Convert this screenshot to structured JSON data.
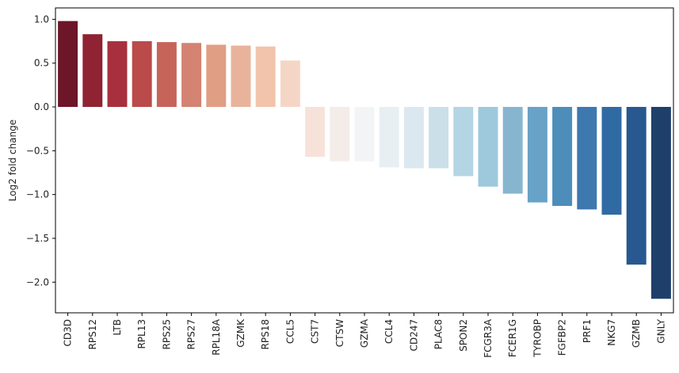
{
  "chart_data": {
    "type": "bar",
    "title": "",
    "xlabel": "",
    "ylabel": "Log2 fold change",
    "ylim": [
      -2.35,
      1.13
    ],
    "yticks": [
      1.0,
      0.5,
      0.0,
      -0.5,
      -1.0,
      -1.5,
      -2.0
    ],
    "ytick_labels": [
      "1.0",
      "0.5",
      "0.0",
      "−0.5",
      "−1.0",
      "−1.5",
      "−2.0"
    ],
    "categories": [
      "CD3D",
      "RPS12",
      "LTB",
      "RPL13",
      "RPS25",
      "RPS27",
      "RPL18A",
      "GZMK",
      "RPS18",
      "CCL5",
      "CST7",
      "CTSW",
      "GZMA",
      "CCL4",
      "CD247",
      "PLAC8",
      "SPON2",
      "FCGR3A",
      "FCER1G",
      "TYROBP",
      "FGFBP2",
      "PRF1",
      "NKG7",
      "GZMB",
      "GNLY"
    ],
    "values": [
      0.98,
      0.83,
      0.75,
      0.75,
      0.74,
      0.73,
      0.71,
      0.7,
      0.69,
      0.53,
      -0.57,
      -0.62,
      -0.62,
      -0.69,
      -0.7,
      -0.7,
      -0.79,
      -0.91,
      -0.99,
      -1.09,
      -1.13,
      -1.17,
      -1.23,
      -1.8,
      -2.19
    ],
    "colors": [
      "#6d1529",
      "#8f2233",
      "#a8303e",
      "#bb4a4a",
      "#c6645a",
      "#d48271",
      "#e09e84",
      "#e9b39b",
      "#f1c4ab",
      "#f5d6c6",
      "#f7e2da",
      "#f4ece9",
      "#f2f4f5",
      "#e8eff3",
      "#dce8ef",
      "#cadfe8",
      "#b4d5e3",
      "#9ec9dc",
      "#87b5cf",
      "#68a2c7",
      "#4d8dba",
      "#3d78ae",
      "#306aa3",
      "#28588f",
      "#1f3f6b"
    ],
    "grid": false,
    "legend": "none"
  }
}
